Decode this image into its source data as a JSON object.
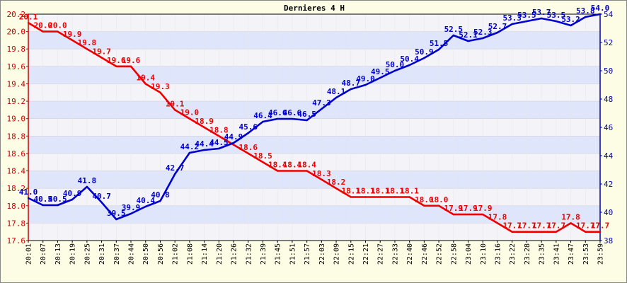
{
  "chart_data": {
    "type": "line",
    "title": "Dernieres 4 H",
    "x": [
      "20:01",
      "20:07",
      "20:13",
      "20:19",
      "20:25",
      "20:31",
      "20:37",
      "20:44",
      "20:50",
      "20:56",
      "21:02",
      "21:08",
      "21:14",
      "21:20",
      "21:26",
      "21:32",
      "21:39",
      "21:45",
      "21:51",
      "21:57",
      "22:03",
      "22:09",
      "22:15",
      "22:21",
      "22:27",
      "22:33",
      "22:40",
      "22:46",
      "22:52",
      "22:58",
      "23:04",
      "23:10",
      "23:16",
      "23:22",
      "23:28",
      "23:35",
      "23:41",
      "23:47",
      "23:53",
      "23:59"
    ],
    "x_tick_labels": [
      "20:01",
      "20:07",
      "20:13",
      "20:19",
      "20:25",
      "20:31",
      "20:37",
      "20:44",
      "20:50",
      "20:56",
      "21:02",
      "21:08",
      "21:14",
      "21:20",
      "21:26",
      "21:32",
      "21:39",
      "21:45",
      "21:51",
      "21:57",
      "22:03",
      "22:09",
      "22:15",
      "22:21",
      "22:27",
      "22:33",
      "22:40",
      "22:46",
      "22:52",
      "22:58",
      "23:04",
      "23:10",
      "23:16",
      "23:22",
      "23:28",
      "23:35",
      "23:41",
      "23:47",
      "23:53",
      "23:59"
    ],
    "series": [
      {
        "axis": "left",
        "color": "#ee0000",
        "values": [
          20.1,
          20.0,
          20.0,
          19.9,
          19.8,
          19.7,
          19.6,
          19.6,
          19.4,
          19.3,
          19.1,
          19.0,
          18.9,
          18.8,
          18.7,
          18.6,
          18.5,
          18.4,
          18.4,
          18.4,
          18.3,
          18.2,
          18.1,
          18.1,
          18.1,
          18.1,
          18.1,
          18.0,
          18.0,
          17.9,
          17.9,
          17.9,
          17.8,
          17.7,
          17.7,
          17.7,
          17.7,
          17.8,
          17.7,
          17.7
        ],
        "labels": [
          "20.1",
          "20.0",
          "20.0",
          "19.9",
          "19.8",
          "19.7",
          "19.6",
          "19.6",
          "19.4",
          "19.3",
          "19.1",
          "19.0",
          "18.9",
          "18.8",
          "",
          "18.6",
          "18.5",
          "18.4",
          "18.4",
          "18.4",
          "18.3",
          "18.2",
          "18.1",
          "18.1",
          "18.1",
          "18.1",
          "18.1",
          "18.0",
          "18.0",
          "17.9",
          "17.9",
          "17.9",
          "17.8",
          "17.7",
          "17.7",
          "17.7",
          "17.7",
          "17.8",
          "17.7",
          "17.7"
        ]
      },
      {
        "axis": "right",
        "color": "#0000cc",
        "values": [
          41.0,
          40.5,
          40.5,
          40.9,
          41.8,
          40.7,
          39.5,
          39.9,
          40.4,
          40.8,
          42.7,
          44.2,
          44.4,
          44.5,
          44.9,
          45.6,
          46.4,
          46.6,
          46.6,
          46.5,
          47.3,
          48.1,
          48.7,
          49.0,
          49.5,
          50.0,
          50.4,
          50.9,
          51.5,
          52.5,
          52.1,
          52.3,
          52.7,
          53.3,
          53.5,
          53.7,
          53.5,
          53.2,
          53.8,
          54.0
        ],
        "labels": [
          "41.0",
          "40.5",
          "40.5",
          "40.9",
          "41.8",
          "40.7",
          "39.5",
          "39.9",
          "40.4",
          "40.8",
          "42.7",
          "44.2",
          "44.4",
          "44.5",
          "44.9",
          "45.6",
          "46.4",
          "46.6",
          "46.6",
          "46.5",
          "47.3",
          "48.1",
          "48.7",
          "49.0",
          "49.5",
          "50.0",
          "50.4",
          "50.9",
          "51.5",
          "52.5",
          "52.1",
          "52.3",
          "52.7",
          "53.3",
          "53.5",
          "53.7",
          "53.5",
          "53.2",
          "53.8",
          "54.0"
        ]
      }
    ],
    "y_left": {
      "min": 17.6,
      "max": 20.2,
      "ticks": [
        "17.6",
        "17.8",
        "18.0",
        "18.2",
        "18.4",
        "18.6",
        "18.8",
        "19.0",
        "19.2",
        "19.4",
        "19.6",
        "19.8",
        "20.0",
        "20.2"
      ]
    },
    "y_right": {
      "min": 38,
      "max": 54,
      "ticks": [
        "38",
        "40",
        "42",
        "44",
        "46",
        "48",
        "50",
        "52",
        "54"
      ]
    },
    "grid": true,
    "colors": {
      "background": "#fdfde6",
      "band_light": "#f3f3f8",
      "band_blue": "#dfe6fb",
      "left_axis": "#cc0000",
      "right_axis": "#0000aa"
    }
  }
}
